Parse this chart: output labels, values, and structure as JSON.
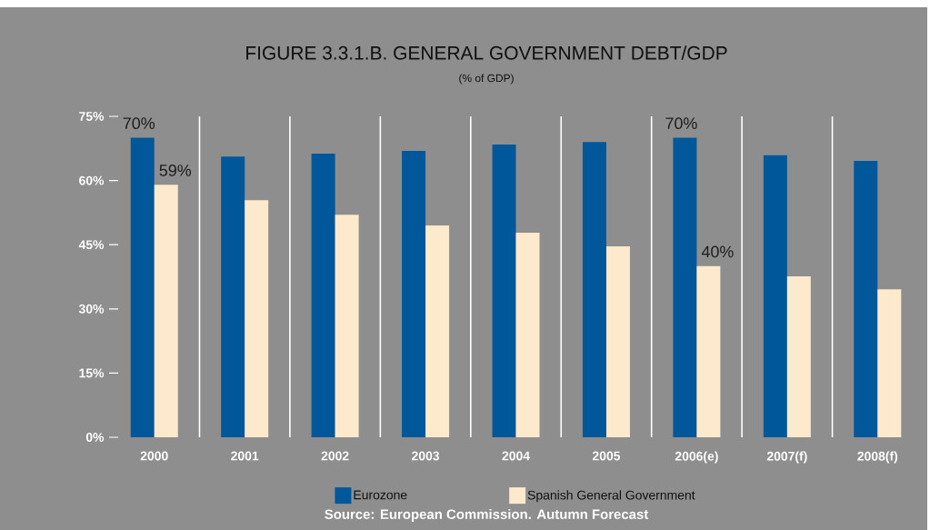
{
  "chart_data": {
    "type": "bar",
    "title": "FIGURE 3.3.1.B. GENERAL GOVERNMENT DEBT/GDP",
    "subtitle": "(% of GDP)",
    "categories": [
      "2000",
      "2001",
      "2002",
      "2003",
      "2004",
      "2005",
      "2006(e)",
      "2007(f)",
      "2008(f)"
    ],
    "series": [
      {
        "name": "Eurozone",
        "color": "#00589a",
        "values": [
          70,
          65.6,
          66.3,
          66.9,
          68.4,
          69,
          70,
          65.9,
          64.6
        ],
        "value_labels": [
          "70%",
          null,
          null,
          null,
          null,
          null,
          "70%",
          null,
          null
        ]
      },
      {
        "name": "Spanish General Government",
        "color": "#fde9cc",
        "values": [
          59,
          55.4,
          52,
          49.5,
          47.8,
          44.6,
          40,
          37.6,
          34.6
        ],
        "value_labels": [
          "59%",
          null,
          null,
          null,
          null,
          null,
          "40%",
          null,
          null
        ]
      }
    ],
    "ylim": [
      0,
      75
    ],
    "yticks": [
      {
        "value": 0,
        "label": "0%"
      },
      {
        "value": 15,
        "label": "15%"
      },
      {
        "value": 30,
        "label": "30%"
      },
      {
        "value": 45,
        "label": "45%"
      },
      {
        "value": 60,
        "label": "60%"
      },
      {
        "value": 75,
        "label": "75%"
      }
    ],
    "grid": "x",
    "legend": "bottom",
    "annotations": [
      "Source: European Commission. Autumn Forecast"
    ]
  }
}
